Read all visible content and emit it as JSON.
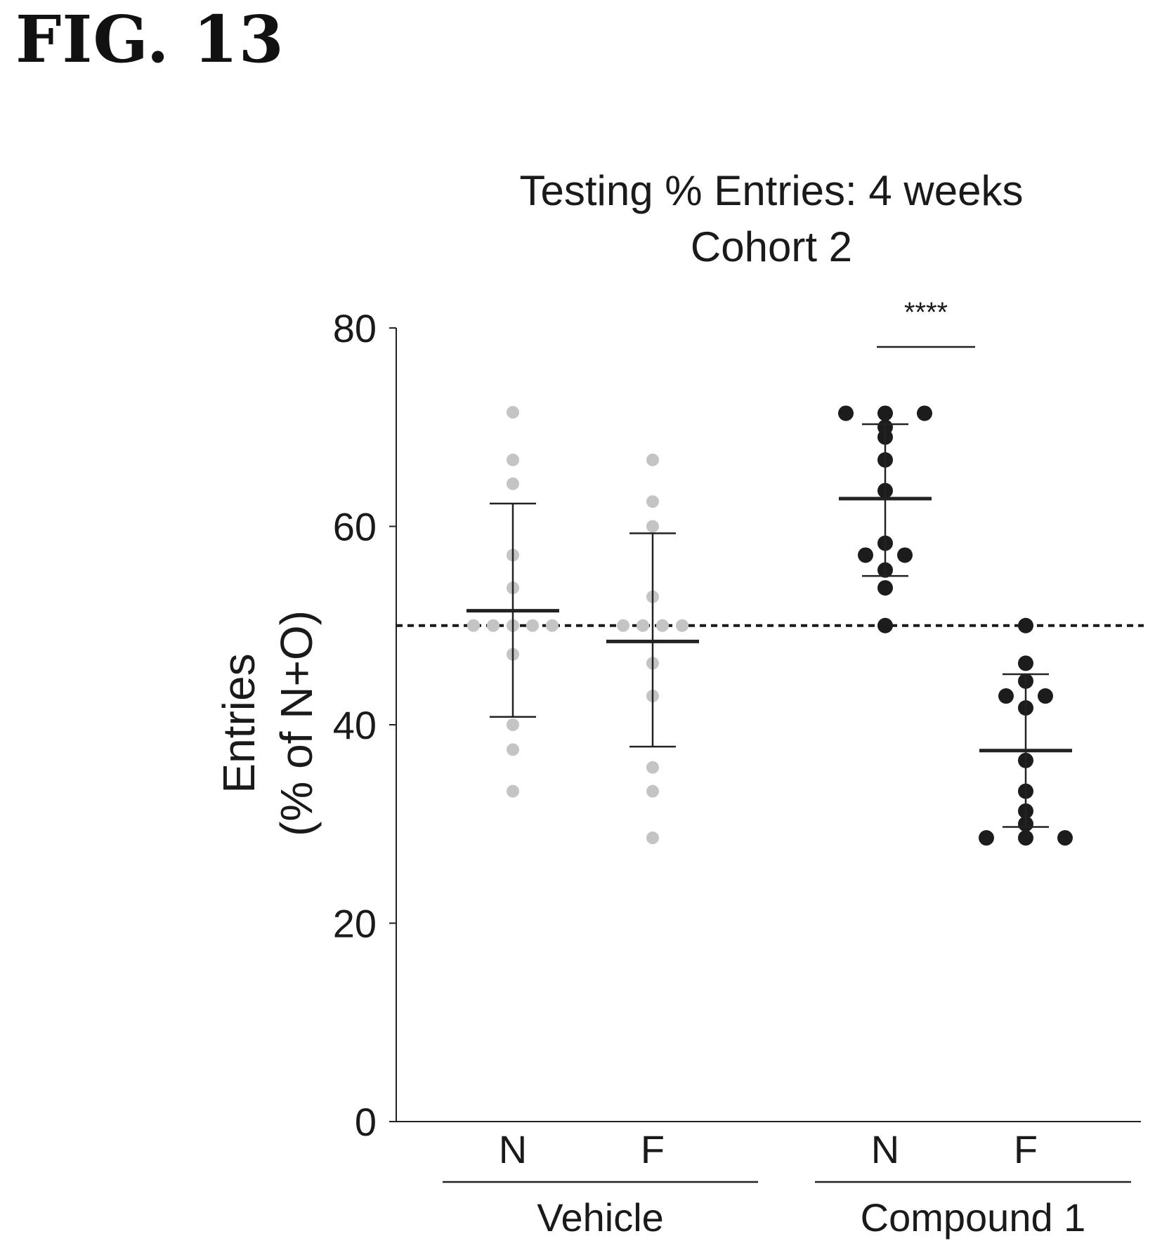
{
  "figure_label": "FIG. 13",
  "chart_data": {
    "type": "scatter",
    "title": "Testing % Entries: 4 weeks",
    "subtitle": "Cohort 2",
    "ylabel_line1": "Entries",
    "ylabel_line2": "(% of N+O)",
    "ylim": [
      0,
      80
    ],
    "yticks": [
      0,
      20,
      40,
      60,
      80
    ],
    "reference_line": 50,
    "categories": [
      "N",
      "F",
      "N",
      "F"
    ],
    "groups": [
      {
        "label": "Vehicle",
        "categories": [
          0,
          1
        ]
      },
      {
        "label": "Compound 1",
        "categories": [
          2,
          3
        ]
      }
    ],
    "series": [
      {
        "category": 0,
        "group": "Vehicle",
        "color": "#c4c4c4",
        "mean": 51.5,
        "error": [
          40.8,
          62.3
        ],
        "points": [
          71.5,
          66.7,
          64.3,
          57.1,
          53.8,
          50,
          50,
          50,
          50,
          50,
          47.1,
          40,
          37.5,
          33.3
        ]
      },
      {
        "category": 1,
        "group": "Vehicle",
        "color": "#c4c4c4",
        "mean": 48.4,
        "error": [
          37.8,
          59.3
        ],
        "points": [
          66.7,
          62.5,
          60,
          52.9,
          50,
          50,
          50,
          50,
          46.2,
          42.9,
          35.7,
          33.3,
          28.6
        ]
      },
      {
        "category": 2,
        "group": "Compound 1",
        "color": "#1c1c1c",
        "mean": 62.8,
        "error": [
          55,
          70.3
        ],
        "points": [
          71.4,
          71.4,
          71.4,
          70,
          69,
          66.7,
          63.6,
          58.3,
          57.1,
          57.1,
          55.6,
          53.8,
          50
        ]
      },
      {
        "category": 3,
        "group": "Compound 1",
        "color": "#1c1c1c",
        "mean": 37.4,
        "error": [
          29.7,
          45.1
        ],
        "points": [
          50,
          46.2,
          44.4,
          42.9,
          42.9,
          41.7,
          36.4,
          33.3,
          31.3,
          30,
          28.6,
          28.6,
          28.6
        ]
      }
    ],
    "significance": {
      "text": "****",
      "from": 2,
      "to": 3
    }
  }
}
